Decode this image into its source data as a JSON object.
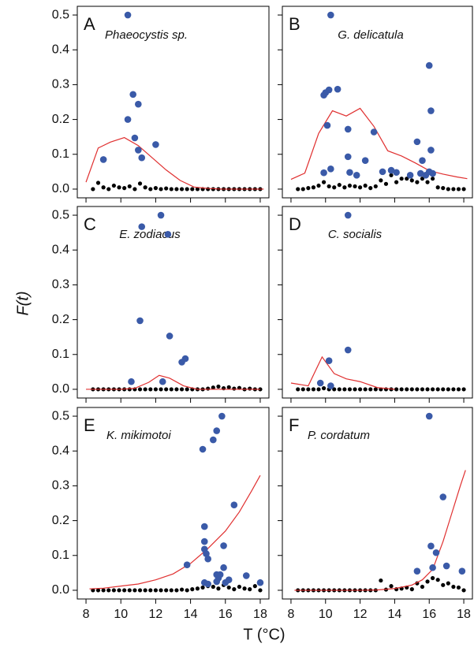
{
  "x_label": "T (°C)",
  "y_label": "F(t)",
  "chart_data": [
    {
      "type": "scatter",
      "label": "A",
      "title": "Phaeocystis sp.",
      "xlim": [
        7.5,
        18.5
      ],
      "ylim": [
        -0.025,
        0.525
      ],
      "xticks": [
        8,
        10,
        12,
        14,
        16,
        18
      ],
      "yticks": [
        {
          "value": 0,
          "label": "0.0"
        },
        0.1,
        0.2,
        0.3,
        0.4,
        0.5
      ],
      "series": [
        {
          "color": "#000000",
          "x": [
            8.4,
            8.7,
            9.0,
            9.3,
            9.6,
            9.9,
            10.2,
            10.5,
            10.8,
            11.1,
            11.4,
            11.7,
            12.0,
            12.3,
            12.6,
            12.9,
            13.2,
            13.5,
            13.8,
            14.1,
            14.4,
            14.7,
            15.0,
            15.3,
            15.6,
            15.9,
            16.2,
            16.5,
            16.8,
            17.1,
            17.4,
            17.7,
            18.0
          ],
          "values": [
            0,
            0.018,
            0.005,
            0,
            0.01,
            0.005,
            0.003,
            0.008,
            0,
            0.016,
            0.005,
            0,
            0.003,
            0,
            0.002,
            0,
            0,
            0,
            0,
            0,
            0,
            0,
            0,
            0,
            0,
            0,
            0,
            0,
            0,
            0,
            0,
            0,
            0
          ]
        },
        {
          "type": "line",
          "color": "#e03030",
          "x": [
            8,
            8.7,
            9.4,
            10.2,
            11,
            11.8,
            12.6,
            13.4,
            14.2,
            15,
            15.8,
            16.6,
            17.4,
            18.2
          ],
          "values": [
            0.02,
            0.118,
            0.135,
            0.148,
            0.125,
            0.09,
            0.055,
            0.025,
            0.006,
            0.002,
            0,
            0,
            0,
            0
          ]
        },
        {
          "color": "#3a5aa8",
          "x": [
            9.0,
            10.4,
            10.4,
            10.7,
            10.8,
            11.0,
            11.0,
            11.2,
            12.0
          ],
          "values": [
            0.085,
            0.5,
            0.2,
            0.272,
            0.147,
            0.244,
            0.112,
            0.09,
            0.128
          ]
        }
      ]
    },
    {
      "type": "scatter",
      "label": "B",
      "title": "G. delicatula",
      "xlim": [
        7.5,
        18.5
      ],
      "ylim": [
        -0.025,
        0.525
      ],
      "xticks": [
        8,
        10,
        12,
        14,
        16,
        18
      ],
      "yticks": [
        {
          "value": 0,
          "label": "0.0"
        },
        0.1,
        0.2,
        0.3,
        0.4,
        0.5
      ],
      "series": [
        {
          "color": "#000000",
          "x": [
            8.4,
            8.7,
            9.0,
            9.3,
            9.6,
            9.9,
            10.2,
            10.5,
            10.8,
            11.1,
            11.4,
            11.7,
            12.0,
            12.3,
            12.6,
            12.9,
            13.2,
            13.5,
            13.8,
            14.1,
            14.4,
            14.7,
            15.0,
            15.3,
            15.6,
            15.9,
            16.2,
            16.5,
            16.8,
            17.1,
            17.4,
            17.7,
            18.0
          ],
          "values": [
            0,
            0,
            0.003,
            0.005,
            0.01,
            0.02,
            0.008,
            0.005,
            0.012,
            0.005,
            0.01,
            0.008,
            0.005,
            0.01,
            0.003,
            0.008,
            0.025,
            0.015,
            0.04,
            0.02,
            0.03,
            0.03,
            0.025,
            0.02,
            0.03,
            0.02,
            0.03,
            0.005,
            0.003,
            0,
            0,
            0,
            0
          ]
        },
        {
          "type": "line",
          "color": "#e03030",
          "x": [
            8,
            8.8,
            9.6,
            10.4,
            11.2,
            12,
            12.8,
            13.6,
            14.4,
            15.2,
            16,
            16.8,
            17.6,
            18.2
          ],
          "values": [
            0.028,
            0.046,
            0.16,
            0.225,
            0.21,
            0.232,
            0.18,
            0.11,
            0.095,
            0.075,
            0.053,
            0.043,
            0.035,
            0.03
          ]
        },
        {
          "color": "#3a5aa8",
          "x": [
            9.9,
            10.0,
            10.1,
            10.2,
            10.3,
            10.3,
            10.7,
            9.9,
            11.3,
            11.3,
            11.4,
            11.8,
            12.3,
            12.8,
            13.3,
            13.8,
            14.1,
            14.9,
            15.3,
            15.5,
            15.6,
            15.8,
            16.0,
            16.1,
            16.1,
            16.2,
            16.0
          ],
          "values": [
            0.27,
            0.277,
            0.183,
            0.285,
            0.5,
            0.058,
            0.287,
            0.047,
            0.172,
            0.093,
            0.048,
            0.04,
            0.082,
            0.164,
            0.05,
            0.054,
            0.048,
            0.04,
            0.136,
            0.045,
            0.082,
            0.04,
            0.355,
            0.225,
            0.112,
            0.045,
            0.05
          ]
        }
      ]
    },
    {
      "type": "scatter",
      "label": "C",
      "title": "E. zodiacus",
      "xlim": [
        7.5,
        18.5
      ],
      "ylim": [
        -0.025,
        0.525
      ],
      "xticks": [
        8,
        10,
        12,
        14,
        16,
        18
      ],
      "yticks": [
        {
          "value": 0,
          "label": "0.0"
        },
        0.1,
        0.2,
        0.3,
        0.4,
        0.5
      ],
      "series": [
        {
          "color": "#000000",
          "x": [
            8.4,
            8.7,
            9.0,
            9.3,
            9.6,
            9.9,
            10.2,
            10.5,
            10.8,
            11.1,
            11.4,
            11.7,
            12.0,
            12.3,
            12.6,
            12.9,
            13.2,
            13.5,
            13.8,
            14.1,
            14.4,
            14.7,
            15.0,
            15.3,
            15.6,
            15.9,
            16.2,
            16.5,
            16.8,
            17.1,
            17.4,
            17.7,
            18.0
          ],
          "values": [
            0,
            0,
            0,
            0,
            0,
            0,
            0,
            0,
            0,
            0,
            0,
            0,
            0,
            0,
            0,
            0,
            0,
            0,
            0,
            0,
            0,
            0,
            0.002,
            0.005,
            0.008,
            0.003,
            0.006,
            0.002,
            0.004,
            0,
            0.002,
            0,
            0
          ]
        },
        {
          "type": "line",
          "color": "#e03030",
          "x": [
            8,
            9,
            10,
            10.8,
            11.6,
            12.2,
            12.8,
            13.6,
            14.4,
            18
          ],
          "values": [
            0,
            0,
            0,
            0.003,
            0.02,
            0.04,
            0.032,
            0.01,
            0,
            0
          ]
        },
        {
          "color": "#3a5aa8",
          "x": [
            10.6,
            11.1,
            11.2,
            12.3,
            12.4,
            12.7,
            12.8,
            13.5,
            13.7
          ],
          "values": [
            0.022,
            0.197,
            0.467,
            0.5,
            0.022,
            0.445,
            0.153,
            0.078,
            0.088
          ]
        }
      ]
    },
    {
      "type": "scatter",
      "label": "D",
      "title": "C. socialis",
      "xlim": [
        7.5,
        18.5
      ],
      "ylim": [
        -0.025,
        0.525
      ],
      "xticks": [
        8,
        10,
        12,
        14,
        16,
        18
      ],
      "yticks": [
        {
          "value": 0,
          "label": "0.0"
        },
        0.1,
        0.2,
        0.3,
        0.4,
        0.5
      ],
      "series": [
        {
          "color": "#000000",
          "x": [
            8.4,
            8.7,
            9.0,
            9.3,
            9.6,
            9.9,
            10.2,
            10.5,
            10.8,
            11.1,
            11.4,
            11.7,
            12.0,
            12.3,
            12.6,
            12.9,
            13.2,
            13.5,
            13.8,
            14.1,
            14.4,
            14.7,
            15.0,
            15.3,
            15.6,
            15.9,
            16.2,
            16.5,
            16.8,
            17.1,
            17.4,
            17.7,
            18.0
          ],
          "values": [
            0,
            0,
            0,
            0,
            0,
            0.003,
            0,
            0,
            0,
            0,
            0,
            0,
            0,
            0,
            0,
            0,
            0,
            0,
            0,
            0,
            0,
            0,
            0,
            0,
            0,
            0,
            0,
            0,
            0,
            0,
            0,
            0,
            0
          ]
        },
        {
          "type": "line",
          "color": "#e03030",
          "x": [
            8,
            9,
            9.8,
            10.5,
            11.2,
            12,
            13,
            14
          ],
          "values": [
            0.018,
            0.01,
            0.093,
            0.045,
            0.03,
            0.022,
            0.005,
            0
          ]
        },
        {
          "color": "#3a5aa8",
          "x": [
            9.7,
            10.2,
            10.3,
            11.3,
            11.3
          ],
          "values": [
            0.018,
            0.082,
            0.01,
            0.5,
            0.113
          ]
        }
      ]
    },
    {
      "type": "scatter",
      "label": "E",
      "title": "K. mikimotoi",
      "xlim": [
        7.5,
        18.5
      ],
      "ylim": [
        -0.025,
        0.525
      ],
      "xticks": [
        8,
        10,
        12,
        14,
        16,
        18
      ],
      "yticks": [
        {
          "value": 0,
          "label": "0.0"
        },
        0.1,
        0.2,
        0.3,
        0.4,
        0.5
      ],
      "series": [
        {
          "color": "#000000",
          "x": [
            8.4,
            8.7,
            9.0,
            9.3,
            9.6,
            9.9,
            10.2,
            10.5,
            10.8,
            11.1,
            11.4,
            11.7,
            12.0,
            12.3,
            12.6,
            12.9,
            13.2,
            13.5,
            13.8,
            14.1,
            14.4,
            14.7,
            15.0,
            15.3,
            15.6,
            15.9,
            16.2,
            16.5,
            16.8,
            17.1,
            17.4,
            17.7,
            18.0
          ],
          "values": [
            0,
            0,
            0,
            0,
            0,
            0,
            0,
            0,
            0,
            0,
            0,
            0,
            0,
            0,
            0,
            0,
            0,
            0.002,
            0,
            0.003,
            0.005,
            0.008,
            0.012,
            0.01,
            0.005,
            0.015,
            0.008,
            0.003,
            0.01,
            0.005,
            0.003,
            0.012,
            0
          ]
        },
        {
          "type": "line",
          "color": "#e03030",
          "x": [
            8.2,
            9,
            10,
            11,
            12,
            13,
            14,
            15,
            16,
            16.8,
            17.5,
            18
          ],
          "values": [
            0.004,
            0.006,
            0.012,
            0.018,
            0.03,
            0.047,
            0.077,
            0.12,
            0.17,
            0.225,
            0.285,
            0.33
          ]
        },
        {
          "color": "#3a5aa8",
          "x": [
            13.8,
            14.7,
            14.8,
            14.8,
            14.8,
            14.8,
            14.9,
            15.0,
            15.0,
            15.3,
            15.5,
            15.5,
            15.5,
            15.6,
            15.7,
            15.8,
            15.9,
            15.9,
            16.0,
            16.2,
            16.5,
            17.2,
            18.0
          ],
          "values": [
            0.073,
            0.405,
            0.14,
            0.118,
            0.183,
            0.022,
            0.105,
            0.09,
            0.018,
            0.432,
            0.458,
            0.045,
            0.025,
            0.035,
            0.045,
            0.5,
            0.128,
            0.065,
            0.022,
            0.03,
            0.245,
            0.042,
            0.022
          ]
        }
      ]
    },
    {
      "type": "scatter",
      "label": "F",
      "title": "P. cordatum",
      "xlim": [
        7.5,
        18.5
      ],
      "ylim": [
        -0.025,
        0.525
      ],
      "xticks": [
        8,
        10,
        12,
        14,
        16,
        18
      ],
      "yticks": [
        {
          "value": 0,
          "label": "0.0"
        },
        0.1,
        0.2,
        0.3,
        0.4,
        0.5
      ],
      "series": [
        {
          "color": "#000000",
          "x": [
            8.4,
            8.7,
            9.0,
            9.3,
            9.6,
            9.9,
            10.2,
            10.5,
            10.8,
            11.1,
            11.4,
            11.7,
            12.0,
            12.3,
            12.6,
            12.9,
            13.2,
            13.5,
            13.8,
            14.1,
            14.4,
            14.7,
            15.0,
            15.3,
            15.6,
            15.9,
            16.2,
            16.5,
            16.8,
            17.1,
            17.4,
            17.7,
            18.0
          ],
          "values": [
            0,
            0,
            0,
            0,
            0,
            0,
            0,
            0,
            0,
            0,
            0,
            0,
            0,
            0,
            0,
            0,
            0.028,
            0.002,
            0.012,
            0.003,
            0.005,
            0.008,
            0.003,
            0.02,
            0.01,
            0.025,
            0.035,
            0.03,
            0.015,
            0.02,
            0.01,
            0.008,
            0
          ]
        },
        {
          "type": "line",
          "color": "#e03030",
          "x": [
            8.2,
            10,
            12,
            13,
            14,
            15,
            15.6,
            16.2,
            16.8,
            17.3,
            17.8,
            18.1
          ],
          "values": [
            0,
            0,
            0,
            0.001,
            0.005,
            0.015,
            0.03,
            0.06,
            0.14,
            0.22,
            0.3,
            0.345
          ]
        },
        {
          "color": "#3a5aa8",
          "x": [
            15.3,
            16.0,
            16.1,
            16.2,
            16.4,
            16.8,
            17.0,
            17.9
          ],
          "values": [
            0.055,
            0.5,
            0.127,
            0.065,
            0.108,
            0.268,
            0.07,
            0.055
          ]
        }
      ]
    }
  ]
}
